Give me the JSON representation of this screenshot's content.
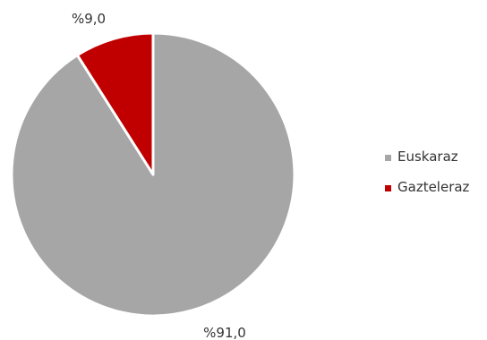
{
  "chart_data": {
    "type": "pie",
    "categories": [
      "Euskaraz",
      "Gazteleraz"
    ],
    "values": [
      91.0,
      9.0
    ],
    "data_labels": [
      "%91,0",
      "%9,0"
    ],
    "colors": [
      "#a6a6a6",
      "#c00000"
    ],
    "legend": {
      "placement": "right"
    },
    "title": ""
  }
}
